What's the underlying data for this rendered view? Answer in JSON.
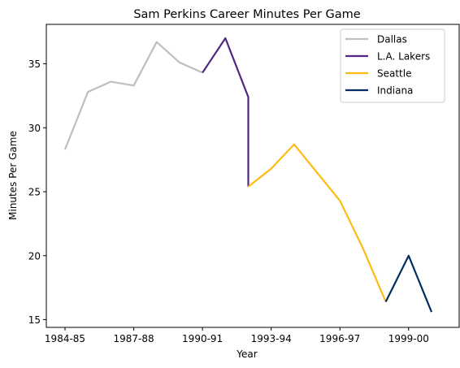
{
  "chart_data": {
    "type": "line",
    "title": "Sam Perkins Career Minutes Per Game",
    "xlabel": "Year",
    "ylabel": "Minutes Per Game",
    "x_ticks": [
      "1984-85",
      "1987-88",
      "1990-91",
      "1993-94",
      "1996-97",
      "1999-00"
    ],
    "y_ticks": [
      15,
      20,
      25,
      30,
      35
    ],
    "xlim_seasons": [
      "1984-85",
      "2000-01"
    ],
    "ylim": [
      14.5,
      37.5
    ],
    "grid": false,
    "legend_position": "top-right",
    "series": [
      {
        "name": "Dallas",
        "color": "#bebebe",
        "x": [
          "1984-85",
          "1985-86",
          "1986-87",
          "1987-88",
          "1988-89",
          "1989-90",
          "1990-91"
        ],
        "values": [
          28.3,
          32.8,
          33.6,
          33.3,
          36.7,
          35.1,
          34.3
        ]
      },
      {
        "name": "L.A. Lakers",
        "color": "#552583",
        "x": [
          "1990-91",
          "1991-92",
          "1992-93",
          "1992-93"
        ],
        "values": [
          34.3,
          37.0,
          32.4,
          25.4
        ]
      },
      {
        "name": "Seattle",
        "color": "#fdbb14",
        "x": [
          "1992-93",
          "1993-94",
          "1994-95",
          "1995-96",
          "1996-97",
          "1997-98",
          "1998-99"
        ],
        "values": [
          25.4,
          26.8,
          28.7,
          26.5,
          24.3,
          20.6,
          16.4
        ]
      },
      {
        "name": "Indiana",
        "color": "#002d62",
        "x": [
          "1998-99",
          "1999-00",
          "2000-01"
        ],
        "values": [
          16.4,
          20.0,
          15.6
        ]
      }
    ]
  }
}
